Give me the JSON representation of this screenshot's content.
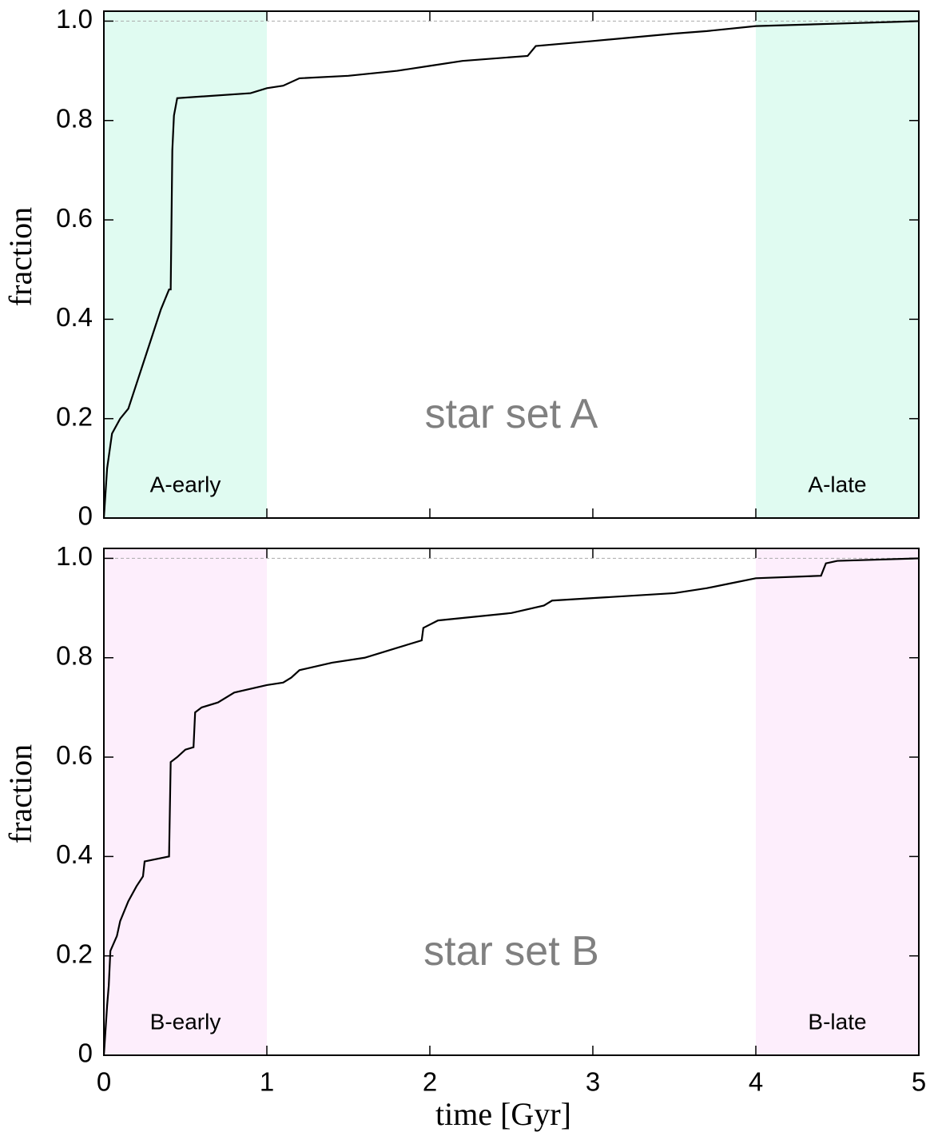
{
  "chart_data": [
    {
      "type": "line",
      "ylabel": "fraction",
      "annotation": "star set A",
      "hline": 1,
      "shaded_regions": [
        {
          "x": [
            0,
            1
          ],
          "label": "A-early",
          "color": "#e0fbf1"
        },
        {
          "x": [
            4,
            5
          ],
          "label": "A-late",
          "color": "#e0fbf1"
        }
      ],
      "x": [
        0,
        0.02,
        0.05,
        0.1,
        0.15,
        0.2,
        0.25,
        0.3,
        0.35,
        0.4,
        0.41,
        0.42,
        0.43,
        0.45,
        0.9,
        1.0,
        1.1,
        1.2,
        1.5,
        1.8,
        2.0,
        2.2,
        2.6,
        2.65,
        3.0,
        3.5,
        3.7,
        4.0,
        4.5,
        5.0
      ],
      "series": [
        {
          "color": "#000000",
          "values": [
            0,
            0.1,
            0.17,
            0.2,
            0.22,
            0.27,
            0.32,
            0.37,
            0.42,
            0.46,
            0.46,
            0.74,
            0.81,
            0.845,
            0.855,
            0.865,
            0.87,
            0.885,
            0.89,
            0.9,
            0.91,
            0.92,
            0.93,
            0.95,
            0.96,
            0.975,
            0.98,
            0.99,
            0.995,
            1.0
          ]
        }
      ],
      "xlim": [
        0,
        5
      ],
      "ylim": [
        0,
        1.02
      ],
      "xticks": [
        0,
        1,
        2,
        3,
        4,
        5
      ],
      "show_xtick_labels": false,
      "yticks": [
        0,
        0.2,
        0.4,
        0.6,
        0.8,
        {
          "value": 1,
          "label": "1.0"
        }
      ]
    },
    {
      "type": "line",
      "ylabel": "fraction",
      "xlabel": "time [Gyr]",
      "annotation": "star set B",
      "hline": 1,
      "shaded_regions": [
        {
          "x": [
            0,
            1
          ],
          "label": "B-early",
          "color": "#fdeefc"
        },
        {
          "x": [
            4,
            5
          ],
          "label": "B-late",
          "color": "#fdeefc"
        }
      ],
      "x": [
        0,
        0.02,
        0.03,
        0.04,
        0.08,
        0.1,
        0.15,
        0.2,
        0.24,
        0.25,
        0.4,
        0.41,
        0.45,
        0.5,
        0.55,
        0.56,
        0.6,
        0.7,
        0.8,
        1.0,
        1.1,
        1.15,
        1.2,
        1.4,
        1.6,
        1.7,
        1.8,
        1.95,
        1.96,
        2.05,
        2.5,
        2.7,
        2.75,
        3.0,
        3.5,
        3.6,
        3.7,
        3.85,
        4.0,
        4.4,
        4.43,
        4.5,
        5.0
      ],
      "series": [
        {
          "color": "#000000",
          "values": [
            0,
            0.1,
            0.14,
            0.21,
            0.24,
            0.27,
            0.31,
            0.34,
            0.36,
            0.39,
            0.4,
            0.59,
            0.6,
            0.615,
            0.62,
            0.69,
            0.7,
            0.71,
            0.73,
            0.745,
            0.75,
            0.76,
            0.775,
            0.79,
            0.8,
            0.81,
            0.82,
            0.835,
            0.86,
            0.875,
            0.89,
            0.905,
            0.915,
            0.92,
            0.93,
            0.935,
            0.94,
            0.95,
            0.96,
            0.965,
            0.99,
            0.995,
            1.0
          ]
        }
      ],
      "xlim": [
        0,
        5
      ],
      "ylim": [
        0,
        1.02
      ],
      "xticks": [
        0,
        1,
        2,
        3,
        4,
        5
      ],
      "show_xtick_labels": true,
      "yticks": [
        0,
        0.2,
        0.4,
        0.6,
        0.8,
        {
          "value": 1,
          "label": "1.0"
        }
      ]
    }
  ]
}
